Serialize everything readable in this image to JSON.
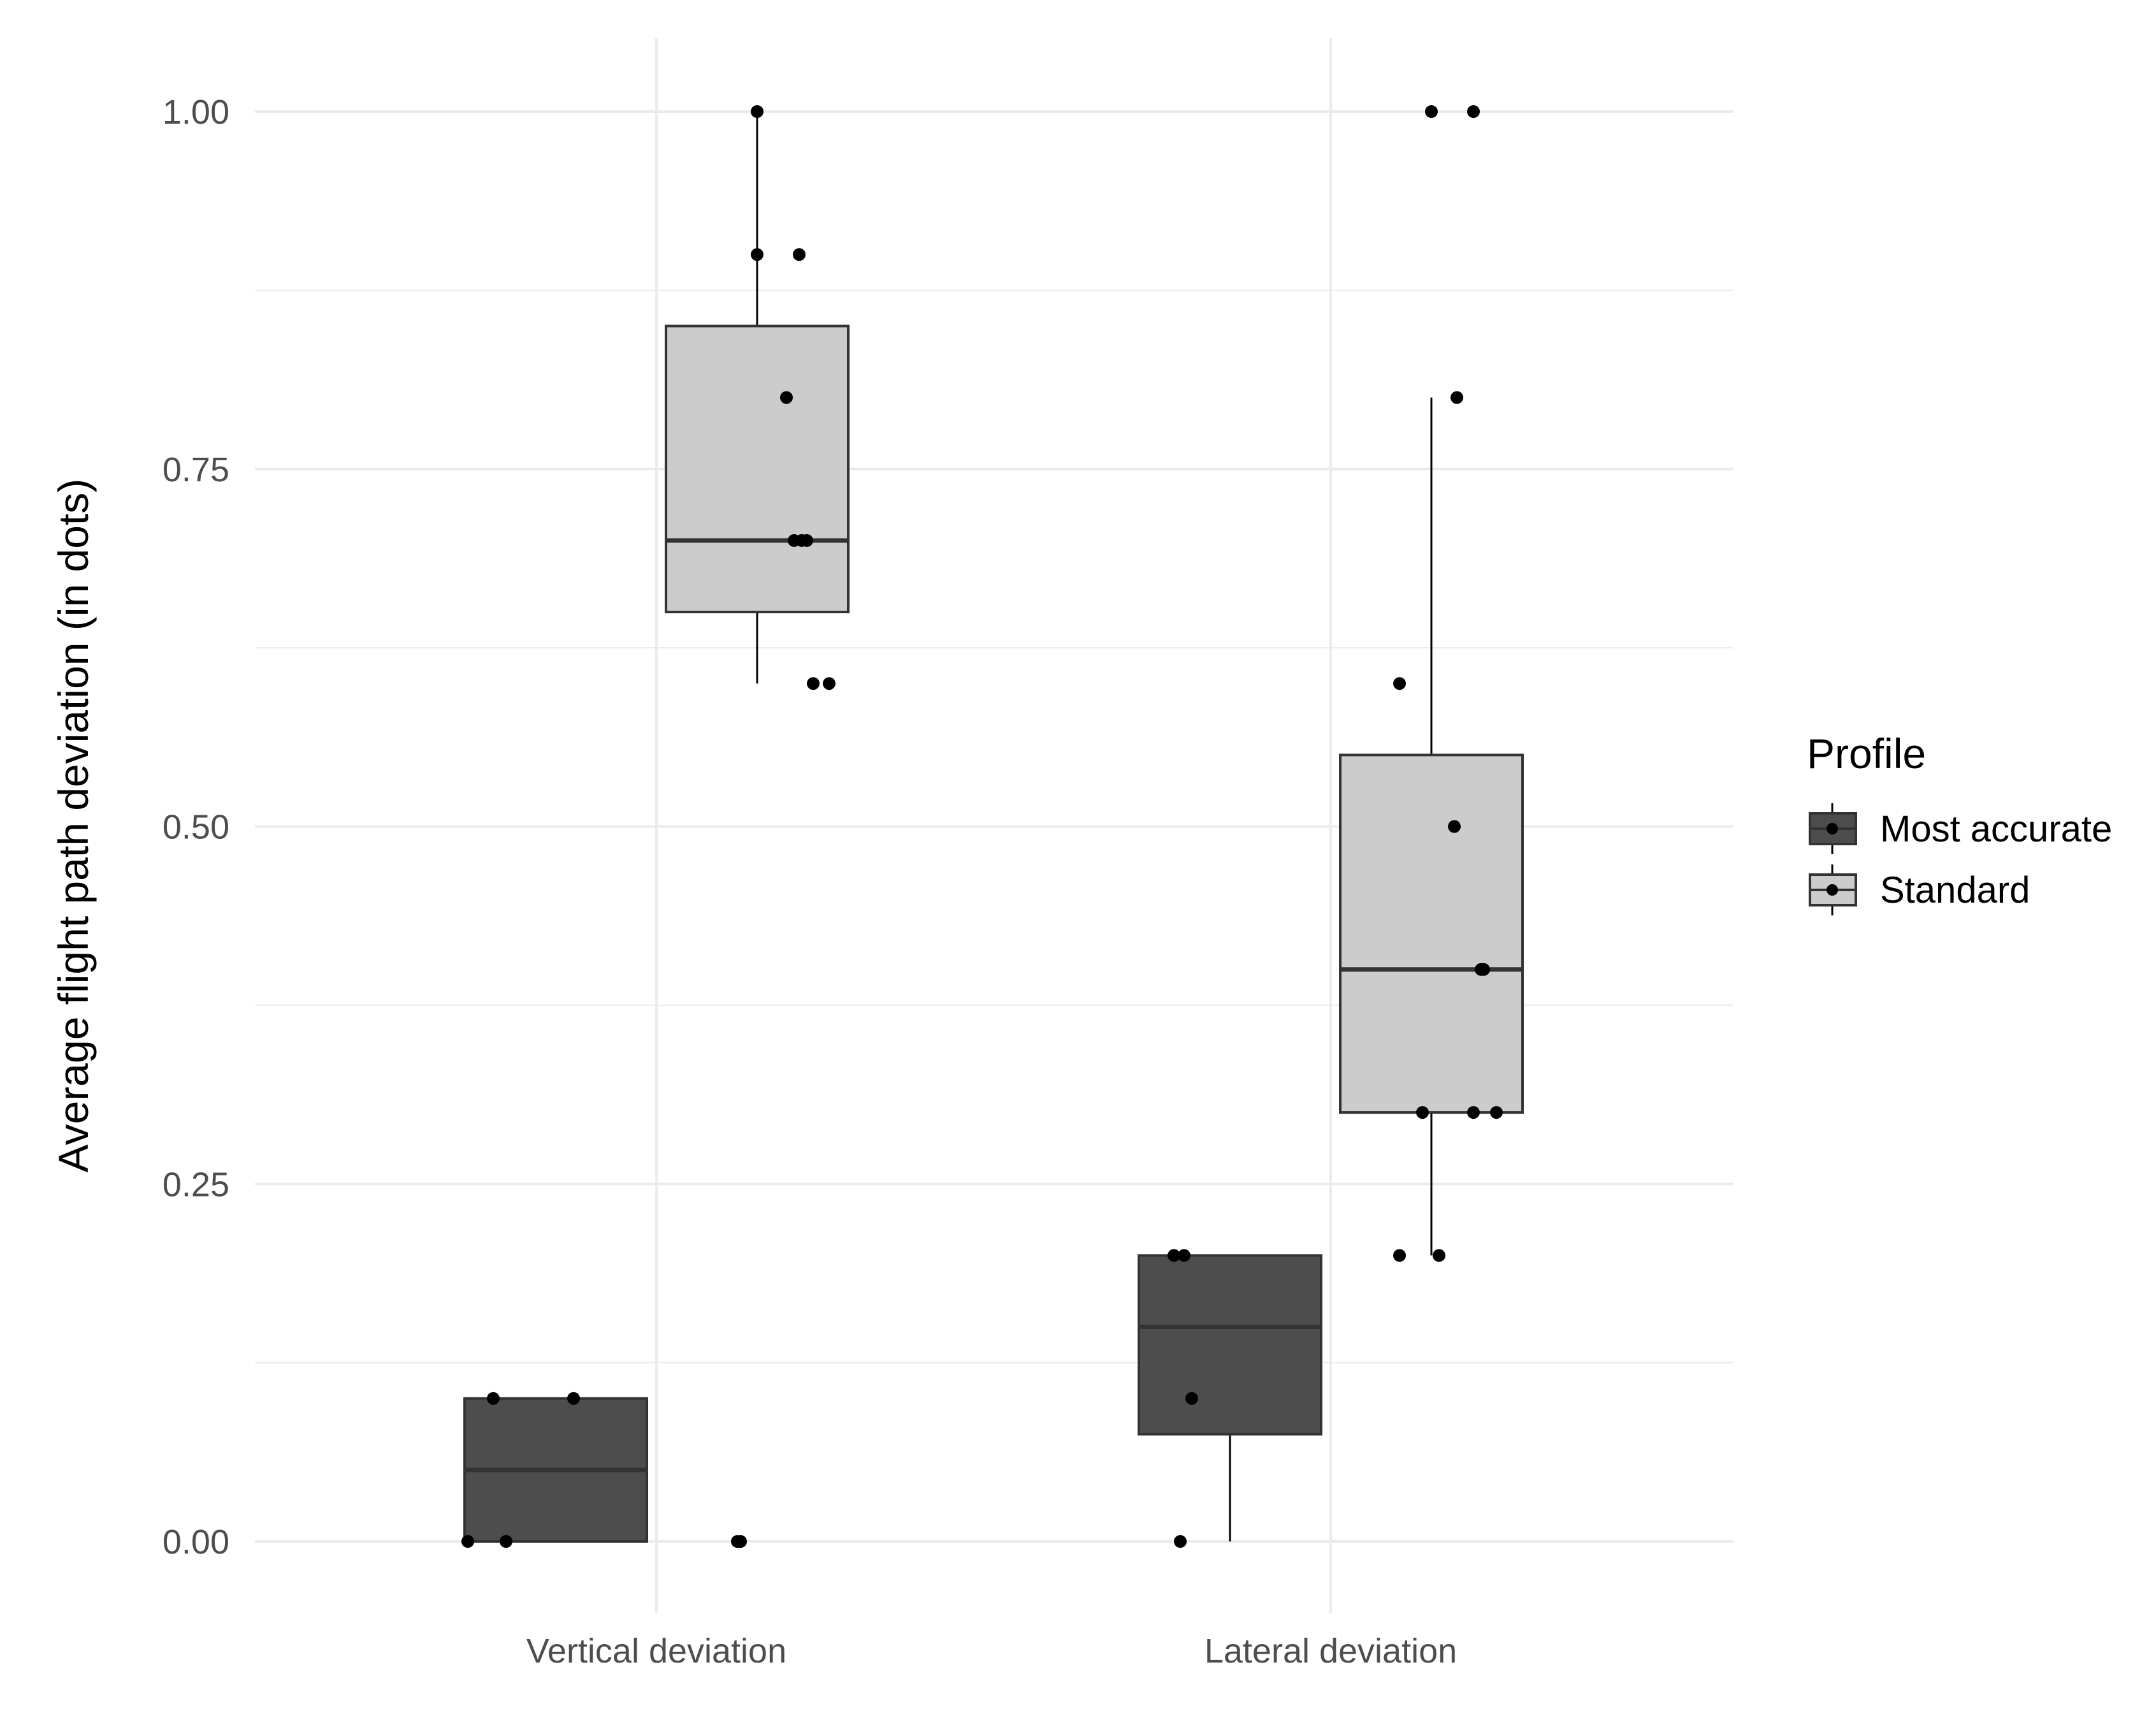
{
  "chart_data": {
    "type": "boxplot",
    "title": "",
    "xlabel": "",
    "ylabel": "Average flight path deviation (in dots)",
    "categories": [
      "Vertical deviation",
      "Lateral deviation"
    ],
    "ylim": [
      -0.1,
      1.05
    ],
    "y_ticks": [
      "0.00",
      "0.25",
      "0.50",
      "0.75",
      "1.00"
    ],
    "y_tick_values": [
      0,
      0.25,
      0.5,
      0.75,
      1.0
    ],
    "grid": true,
    "legend": {
      "title": "Profile",
      "position": "right",
      "entries": [
        "Most accurate",
        "Standard"
      ]
    },
    "colors": {
      "Most accurate": "#4d4d4d",
      "Standard": "#cccccc",
      "points": "#000000",
      "grid": "#ebebeb"
    },
    "series": [
      {
        "name": "Most accurate",
        "boxes": [
          {
            "category": "Vertical deviation",
            "whisker_low": 0,
            "q1": 0,
            "median": 0.05,
            "q3": 0.1,
            "whisker_high": 0.1
          },
          {
            "category": "Lateral deviation",
            "whisker_low": 0,
            "q1": 0.075,
            "median": 0.15,
            "q3": 0.2,
            "whisker_high": 0.2
          }
        ],
        "points": [
          {
            "category": "Vertical deviation",
            "values": [
              0,
              0,
              0.1,
              0.1,
              0,
              0
            ]
          },
          {
            "category": "Lateral deviation",
            "values": [
              0,
              0.1,
              0.2,
              0.2
            ]
          }
        ]
      },
      {
        "name": "Standard",
        "boxes": [
          {
            "category": "Vertical deviation",
            "whisker_low": 0.6,
            "q1": 0.65,
            "median": 0.7,
            "q3": 0.85,
            "whisker_high": 1.0
          },
          {
            "category": "Lateral deviation",
            "whisker_low": 0.2,
            "q1": 0.3,
            "median": 0.4,
            "q3": 0.55,
            "whisker_high": 0.8
          }
        ],
        "points": [
          {
            "category": "Vertical deviation",
            "values": [
              1.0,
              0.9,
              0.9,
              0.8,
              0.7,
              0.7,
              0.7,
              0.6,
              0.6
            ]
          },
          {
            "category": "Lateral deviation",
            "values": [
              1.0,
              1.0,
              0.8,
              0.6,
              0.5,
              0.4,
              0.4,
              0.3,
              0.3,
              0.3,
              0.2,
              0.2
            ]
          }
        ]
      }
    ]
  }
}
